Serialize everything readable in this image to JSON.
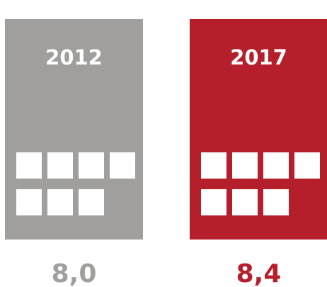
{
  "panels": [
    {
      "year": "2012",
      "value": "8,0",
      "color": "#a09f9d"
    },
    {
      "year": "2017",
      "value": "8,4",
      "color": "#b51f2b"
    }
  ]
}
